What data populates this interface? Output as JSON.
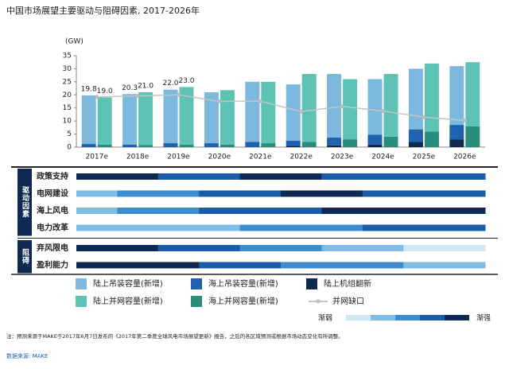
{
  "title": "中国市场展望主要驱动与阻碍因素, 2017-2026年",
  "chart_data": {
    "type": "bar",
    "y_label": "(GW)",
    "categories": [
      "2017e",
      "2018e",
      "2019e",
      "2020e",
      "2021e",
      "2022e",
      "2023e",
      "2024e",
      "2025e",
      "2026e"
    ],
    "ylim": [
      0,
      35
    ],
    "yticks": [
      0,
      5,
      10,
      15,
      20,
      25,
      30,
      35
    ],
    "stacks": [
      [
        {
          "name": "陆上吊装容量(新增)",
          "color": "#7db8df",
          "values": [
            18.6,
            19.3,
            20.5,
            19.5,
            23.0,
            21.5,
            24.3,
            21.2,
            23.2,
            22.5
          ]
        },
        {
          "name": "海上吊装容量(新增)",
          "color": "#1f62b0",
          "values": [
            1.2,
            1.0,
            1.5,
            1.5,
            2.0,
            2.0,
            3.0,
            3.8,
            4.8,
            5.5
          ]
        },
        {
          "name": "陆上机组翻新",
          "color": "#0f2a4f",
          "values": [
            0,
            0,
            0,
            0,
            0,
            0.5,
            0.7,
            1.0,
            2.0,
            3.0
          ]
        }
      ],
      [
        {
          "name": "陆上并网容量(新增)",
          "color": "#5cc3b5",
          "values": [
            18.0,
            20.2,
            22.0,
            20.8,
            23.5,
            26.0,
            23.0,
            24.0,
            26.0,
            24.5
          ]
        },
        {
          "name": "海上并网容量(新增)",
          "color": "#2a8c7a",
          "values": [
            1.0,
            0.8,
            1.0,
            1.0,
            1.5,
            2.0,
            3.0,
            4.0,
            6.0,
            8.0
          ]
        }
      ]
    ],
    "total_labels": [
      [
        19.8,
        20.3,
        {
          "value": 22,
          "label": "22.0"
        },
        null,
        null,
        null,
        null,
        null,
        null,
        null
      ],
      [
        {
          "value": 19,
          "label": "19.0"
        },
        {
          "value": 21,
          "label": "21.0"
        },
        {
          "value": 23,
          "label": "23.0"
        },
        null,
        null,
        null,
        null,
        null,
        null,
        null
      ]
    ],
    "line": {
      "name": "并网缺口",
      "color": "#c4c4c4",
      "values": [
        19.2,
        19.6,
        20.0,
        17.5,
        17.6,
        13.6,
        15.6,
        13.8,
        11.5,
        10.2
      ]
    },
    "heatmap": {
      "groups": [
        {
          "label": "驱动因素",
          "rows": [
            {
              "label": "政策支持",
              "levels": [
                5,
                5,
                4,
                4,
                5,
                5,
                4,
                4,
                4,
                4
              ]
            },
            {
              "label": "电网建设",
              "levels": [
                2,
                3,
                3,
                4,
                4,
                5,
                5,
                4,
                4,
                4
              ]
            },
            {
              "label": "海上风电",
              "levels": [
                2,
                3,
                3,
                4,
                4,
                4,
                5,
                5,
                5,
                5
              ]
            },
            {
              "label": "电力改革",
              "levels": [
                2,
                2,
                2,
                2,
                3,
                3,
                3,
                4,
                4,
                4
              ]
            }
          ]
        },
        {
          "label": "阻碍",
          "rows": [
            {
              "label": "弃风限电",
              "levels": [
                5,
                5,
                4,
                4,
                3,
                3,
                2,
                2,
                1,
                1
              ]
            },
            {
              "label": "盈利能力",
              "levels": [
                5,
                5,
                5,
                4,
                4,
                3,
                3,
                3,
                2,
                2
              ]
            }
          ]
        }
      ],
      "colors": [
        "#cfe6f5",
        "#7fbde4",
        "#3b8dd0",
        "#1b5ca8",
        "#0e2a52"
      ],
      "scale_low": "渐弱",
      "scale_high": "渐强"
    }
  },
  "footnote": "注：预测来源于MAKE于2017年6月7日发布的《2017年第二季度全球风电市场展望更新》报告，之后的各区域预测或根据市场动态变化有所调整。",
  "source": "数据来源: MAKE"
}
